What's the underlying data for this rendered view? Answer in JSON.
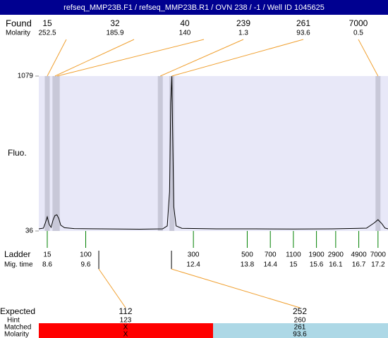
{
  "chart_data": {
    "type": "electropherogram",
    "title": "refseq_MMP23B.F1 / refseq_MMP23B.R1 / OVN 238 / -1 / Well ID 1045625",
    "y_label": "Fluo.",
    "found_label": "Found",
    "found_molarity_label": "Molarity",
    "ladder_label": "Ladder",
    "mig_time_label": "Mig. time",
    "expected_label": "Expected",
    "hint_label": "Hint",
    "matched_label": "Matched",
    "expected_molarity_label": "Molarity",
    "xlim": [
      8.38,
      17.46
    ],
    "ylim": [
      36,
      1079
    ],
    "yticks": [
      36,
      1079
    ],
    "plot_color": "#e8e8f8",
    "band_color": "#c8c8d8",
    "found": [
      {
        "size": 15,
        "molarity": 252.5,
        "time": 8.6
      },
      {
        "size": 32,
        "molarity": 185.9,
        "time": 8.8
      },
      {
        "size": 40,
        "molarity": 140,
        "time": 8.86
      },
      {
        "size": 239,
        "molarity": 1.3,
        "time": 11.54
      },
      {
        "size": 261,
        "molarity": 93.6,
        "time": 11.84
      },
      {
        "size": 7000,
        "molarity": 0.5,
        "time": 17.2
      }
    ],
    "ladder": [
      {
        "size": 15,
        "time": 8.6
      },
      {
        "size": 100,
        "time": 9.6
      },
      {
        "size": 300,
        "time": 12.4
      },
      {
        "size": 500,
        "time": 13.8
      },
      {
        "size": 700,
        "time": 14.4
      },
      {
        "size": 1100,
        "time": 15
      },
      {
        "size": 1900,
        "time": 15.6
      },
      {
        "size": 2900,
        "time": 16.1
      },
      {
        "size": 4900,
        "time": 16.7
      },
      {
        "size": 7000,
        "time": 17.2
      }
    ],
    "expected": [
      {
        "size": 112,
        "hint": 123,
        "matched": "X",
        "molarity": "X",
        "time": 9.94,
        "color": "#ff0000"
      },
      {
        "size": 252,
        "hint": 260,
        "matched": 261,
        "molarity": 93.6,
        "time": 11.83,
        "color": "#add8e6"
      }
    ],
    "trace": {
      "color": "#000000",
      "x": [
        8.38,
        8.5,
        8.55,
        8.6,
        8.65,
        8.7,
        8.75,
        8.8,
        8.85,
        8.9,
        8.95,
        9.05,
        9.3,
        10,
        11,
        11.6,
        11.72,
        11.78,
        11.81,
        11.84,
        11.86,
        11.89,
        11.95,
        12.1,
        13,
        14,
        15,
        16,
        16.9,
        17.1,
        17.2,
        17.3,
        17.38,
        17.46
      ],
      "y": [
        50,
        55,
        90,
        131,
        80,
        60,
        110,
        140,
        145,
        120,
        75,
        58,
        52,
        50,
        48,
        50,
        70,
        300,
        900,
        1079,
        700,
        200,
        70,
        54,
        50,
        50,
        49,
        50,
        55,
        90,
        112,
        85,
        56,
        50
      ]
    }
  }
}
